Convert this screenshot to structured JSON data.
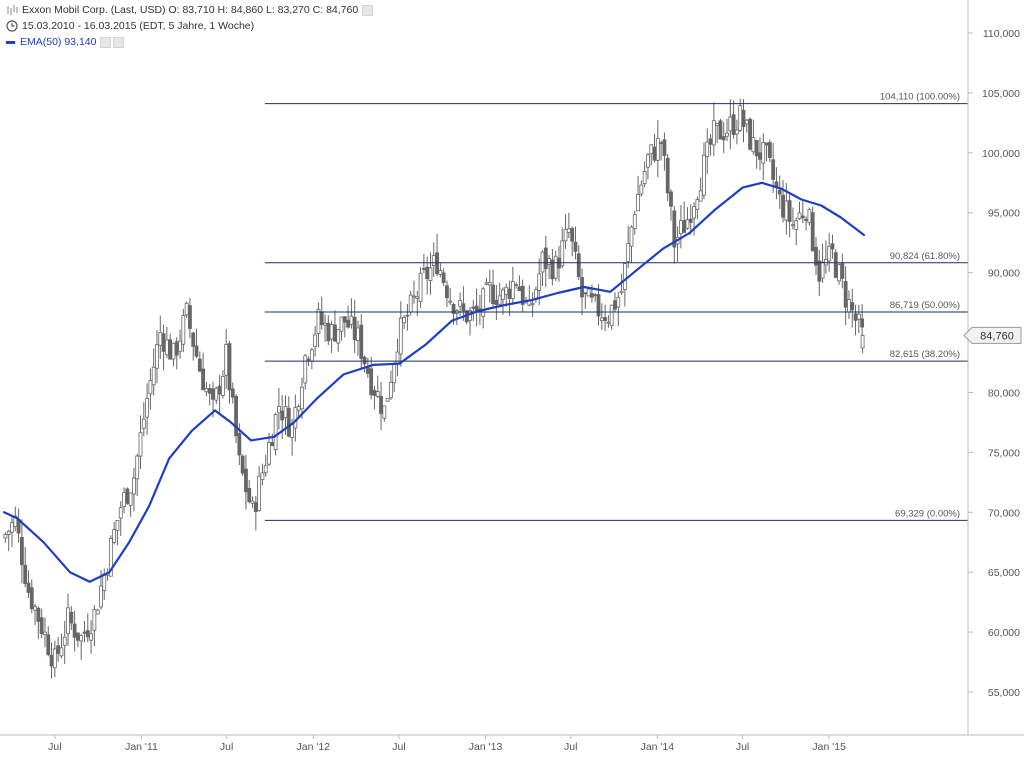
{
  "header": {
    "line1": "Exxon Mobil Corp. (Last, USD)  O: 83,710  H: 84,860  L: 83,270  C: 84,760",
    "line2": "15.03.2010 - 16.03.2015 (EDT, 5 Jahre, 1 Woche)",
    "line3": "EMA(50)  93,140"
  },
  "colors": {
    "candle": "#666666",
    "ema": "#1f3fbf",
    "fib_line": "#1a2e6b",
    "axis": "#bbbbbb",
    "last_price_bg": "#f2f2f2"
  },
  "chart_data": {
    "type": "candlestick",
    "title": "Exxon Mobil Corp. (Last, USD)",
    "timeframe": "15.03.2010 - 16.03.2015 (EDT, 5 Jahre, 1 Woche)",
    "ohlc_last": {
      "open": 83.71,
      "high": 84.86,
      "low": 83.27,
      "close": 84.76
    },
    "ylim": [
      54,
      111
    ],
    "y_ticks": [
      {
        "v": 55,
        "label": "55,000"
      },
      {
        "v": 60,
        "label": "60,000"
      },
      {
        "v": 65,
        "label": "65,000"
      },
      {
        "v": 70,
        "label": "70,000"
      },
      {
        "v": 75,
        "label": "75,000"
      },
      {
        "v": 80,
        "label": "80,000"
      },
      {
        "v": 85,
        "label": "85,000"
      },
      {
        "v": 90,
        "label": "90,000"
      },
      {
        "v": 95,
        "label": "95,000"
      },
      {
        "v": 100,
        "label": "100,000"
      },
      {
        "v": 105,
        "label": "105,000"
      },
      {
        "v": 110,
        "label": "110,000"
      }
    ],
    "x_ticks": [
      {
        "date": "2010-07-01",
        "label": "Jul"
      },
      {
        "date": "2011-01-01",
        "label": "Jan '11"
      },
      {
        "date": "2011-07-01",
        "label": "Jul"
      },
      {
        "date": "2012-01-01",
        "label": "Jan '12"
      },
      {
        "date": "2012-07-01",
        "label": "Jul"
      },
      {
        "date": "2013-01-01",
        "label": "Jan '13"
      },
      {
        "date": "2013-07-01",
        "label": "Jul"
      },
      {
        "date": "2014-01-01",
        "label": "Jan '14"
      },
      {
        "date": "2014-07-01",
        "label": "Jul"
      },
      {
        "date": "2015-01-01",
        "label": "Jan '15"
      }
    ],
    "fib_levels": [
      {
        "value": 104.11,
        "label": "104,110 (100.00%)"
      },
      {
        "value": 90.824,
        "label": "90,824 (61.80%)"
      },
      {
        "value": 86.719,
        "label": "86,719 (50.00%)"
      },
      {
        "value": 82.615,
        "label": "82,615 (38.20%)"
      },
      {
        "value": 69.329,
        "label": "69,329 (0.00%)"
      }
    ],
    "fib_start_date": "2011-09-20",
    "last_price": {
      "value": 84.76,
      "label": "84,760"
    },
    "close_path": [
      {
        "date": "2010-03-15",
        "close": 67.8
      },
      {
        "date": "2010-04-12",
        "close": 69.3
      },
      {
        "date": "2010-05-10",
        "close": 63.5
      },
      {
        "date": "2010-06-07",
        "close": 60.5
      },
      {
        "date": "2010-07-05",
        "close": 57.5
      },
      {
        "date": "2010-08-02",
        "close": 61.0
      },
      {
        "date": "2010-08-30",
        "close": 59.5
      },
      {
        "date": "2010-09-27",
        "close": 61.5
      },
      {
        "date": "2010-10-25",
        "close": 66.0
      },
      {
        "date": "2010-11-22",
        "close": 70.5
      },
      {
        "date": "2010-12-20",
        "close": 73.0
      },
      {
        "date": "2011-01-17",
        "close": 79.5
      },
      {
        "date": "2011-02-14",
        "close": 85.0
      },
      {
        "date": "2011-03-14",
        "close": 83.0
      },
      {
        "date": "2011-04-11",
        "close": 86.5
      },
      {
        "date": "2011-05-09",
        "close": 82.0
      },
      {
        "date": "2011-06-06",
        "close": 78.5
      },
      {
        "date": "2011-07-04",
        "close": 83.0
      },
      {
        "date": "2011-08-01",
        "close": 74.0
      },
      {
        "date": "2011-08-29",
        "close": 70.0
      },
      {
        "date": "2011-09-26",
        "close": 74.5
      },
      {
        "date": "2011-10-24",
        "close": 79.0
      },
      {
        "date": "2011-11-21",
        "close": 77.0
      },
      {
        "date": "2011-12-19",
        "close": 83.0
      },
      {
        "date": "2012-01-16",
        "close": 86.0
      },
      {
        "date": "2012-02-13",
        "close": 85.0
      },
      {
        "date": "2012-03-12",
        "close": 86.0
      },
      {
        "date": "2012-04-09",
        "close": 84.5
      },
      {
        "date": "2012-05-07",
        "close": 81.0
      },
      {
        "date": "2012-06-04",
        "close": 78.5
      },
      {
        "date": "2012-07-02",
        "close": 84.5
      },
      {
        "date": "2012-07-30",
        "close": 87.0
      },
      {
        "date": "2012-08-27",
        "close": 89.5
      },
      {
        "date": "2012-09-24",
        "close": 91.0
      },
      {
        "date": "2012-10-22",
        "close": 88.0
      },
      {
        "date": "2012-11-19",
        "close": 86.5
      },
      {
        "date": "2012-12-17",
        "close": 86.5
      },
      {
        "date": "2013-01-14",
        "close": 88.5
      },
      {
        "date": "2013-02-11",
        "close": 88.0
      },
      {
        "date": "2013-03-11",
        "close": 89.5
      },
      {
        "date": "2013-04-08",
        "close": 86.5
      },
      {
        "date": "2013-05-06",
        "close": 91.0
      },
      {
        "date": "2013-06-03",
        "close": 90.5
      },
      {
        "date": "2013-07-01",
        "close": 93.5
      },
      {
        "date": "2013-07-29",
        "close": 88.0
      },
      {
        "date": "2013-08-26",
        "close": 87.0
      },
      {
        "date": "2013-09-23",
        "close": 86.5
      },
      {
        "date": "2013-10-21",
        "close": 88.5
      },
      {
        "date": "2013-11-18",
        "close": 95.5
      },
      {
        "date": "2013-12-16",
        "close": 99.5
      },
      {
        "date": "2014-01-13",
        "close": 101.0
      },
      {
        "date": "2014-02-10",
        "close": 92.5
      },
      {
        "date": "2014-03-10",
        "close": 94.5
      },
      {
        "date": "2014-04-07",
        "close": 98.0
      },
      {
        "date": "2014-05-05",
        "close": 101.5
      },
      {
        "date": "2014-06-02",
        "close": 102.0
      },
      {
        "date": "2014-06-30",
        "close": 103.0
      },
      {
        "date": "2014-07-28",
        "close": 100.5
      },
      {
        "date": "2014-08-25",
        "close": 99.5
      },
      {
        "date": "2014-09-22",
        "close": 96.0
      },
      {
        "date": "2014-10-20",
        "close": 94.0
      },
      {
        "date": "2014-11-17",
        "close": 95.5
      },
      {
        "date": "2014-12-15",
        "close": 90.0
      },
      {
        "date": "2015-01-12",
        "close": 91.5
      },
      {
        "date": "2015-02-09",
        "close": 88.0
      },
      {
        "date": "2015-03-16",
        "close": 84.76
      }
    ],
    "ema50": [
      {
        "date": "2010-03-15",
        "value": 70.0
      },
      {
        "date": "2010-04-12",
        "value": 69.5
      },
      {
        "date": "2010-06-07",
        "value": 67.5
      },
      {
        "date": "2010-08-02",
        "value": 65.0
      },
      {
        "date": "2010-09-13",
        "value": 64.2
      },
      {
        "date": "2010-10-25",
        "value": 65.0
      },
      {
        "date": "2010-12-06",
        "value": 67.5
      },
      {
        "date": "2011-01-17",
        "value": 70.5
      },
      {
        "date": "2011-03-01",
        "value": 74.5
      },
      {
        "date": "2011-04-18",
        "value": 76.8
      },
      {
        "date": "2011-06-06",
        "value": 78.5
      },
      {
        "date": "2011-07-10",
        "value": 77.5
      },
      {
        "date": "2011-08-22",
        "value": 76.0
      },
      {
        "date": "2011-10-10",
        "value": 76.3
      },
      {
        "date": "2011-11-21",
        "value": 77.5
      },
      {
        "date": "2012-01-09",
        "value": 79.5
      },
      {
        "date": "2012-03-05",
        "value": 81.5
      },
      {
        "date": "2012-05-07",
        "value": 82.3
      },
      {
        "date": "2012-07-02",
        "value": 82.4
      },
      {
        "date": "2012-08-27",
        "value": 84.0
      },
      {
        "date": "2012-10-22",
        "value": 86.0
      },
      {
        "date": "2012-12-17",
        "value": 86.8
      },
      {
        "date": "2013-02-11",
        "value": 87.3
      },
      {
        "date": "2013-04-08",
        "value": 87.7
      },
      {
        "date": "2013-06-03",
        "value": 88.3
      },
      {
        "date": "2013-07-29",
        "value": 88.8
      },
      {
        "date": "2013-09-23",
        "value": 88.4
      },
      {
        "date": "2013-11-18",
        "value": 90.2
      },
      {
        "date": "2014-01-13",
        "value": 92.0
      },
      {
        "date": "2014-03-10",
        "value": 93.3
      },
      {
        "date": "2014-05-05",
        "value": 95.3
      },
      {
        "date": "2014-07-01",
        "value": 97.1
      },
      {
        "date": "2014-08-11",
        "value": 97.5
      },
      {
        "date": "2014-09-22",
        "value": 97.0
      },
      {
        "date": "2014-11-03",
        "value": 96.1
      },
      {
        "date": "2014-12-15",
        "value": 95.6
      },
      {
        "date": "2015-01-26",
        "value": 94.6
      },
      {
        "date": "2015-03-16",
        "value": 93.14
      }
    ]
  }
}
